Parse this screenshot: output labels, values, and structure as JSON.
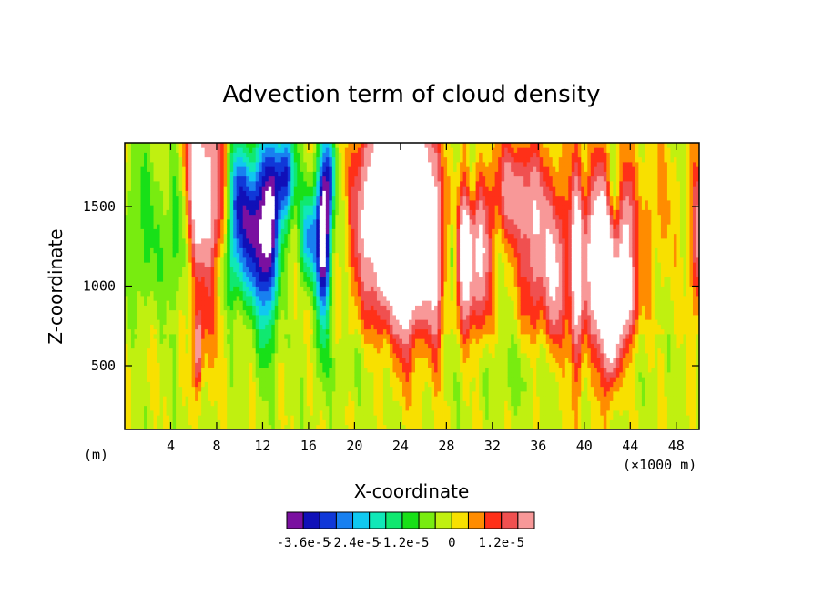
{
  "chart_data": {
    "type": "heatmap",
    "title": "Advection term of cloud density",
    "xlabel": "X-coordinate",
    "ylabel": "Z-coordinate",
    "x_unit_left": "(m)",
    "x_unit_right": "(×1000 m)",
    "xlim": [
      0,
      50
    ],
    "ylim": [
      100,
      1900
    ],
    "x_ticks": [
      4,
      8,
      12,
      16,
      20,
      24,
      28,
      32,
      36,
      40,
      44,
      48
    ],
    "x_tick_labels": [
      "4",
      "8",
      "12",
      "16",
      "20",
      "24",
      "28",
      "32",
      "36",
      "40",
      "44",
      "48"
    ],
    "y_ticks": [
      500,
      1000,
      1500
    ],
    "y_tick_labels": [
      "500",
      "1000",
      "1500"
    ],
    "colorbar": {
      "levels": [
        -3.6e-05,
        -3.2e-05,
        -2.8e-05,
        -2.4e-05,
        -2e-05,
        -1.6e-05,
        -1.2e-05,
        -8e-06,
        -4e-06,
        0,
        4e-06,
        8e-06,
        1.2e-05,
        1.6e-05
      ],
      "colors": [
        "#7a10a0",
        "#1010b8",
        "#1038d8",
        "#1880f0",
        "#10c8f0",
        "#10e8b8",
        "#10e870",
        "#18e018",
        "#78ec10",
        "#c0f010",
        "#f8e000",
        "#ff8c00",
        "#ff3018",
        "#f05050",
        "#f89898"
      ],
      "tick_labels": [
        "-3.6e-5",
        "-2.4e-5",
        "-1.2e-5",
        "0",
        "1.2e-5"
      ],
      "tick_positions": [
        -3.6e-05,
        -2.4e-05,
        -1.2e-05,
        0,
        1.2e-05
      ]
    },
    "out_of_range_color": "#ffffff",
    "grid": false
  }
}
